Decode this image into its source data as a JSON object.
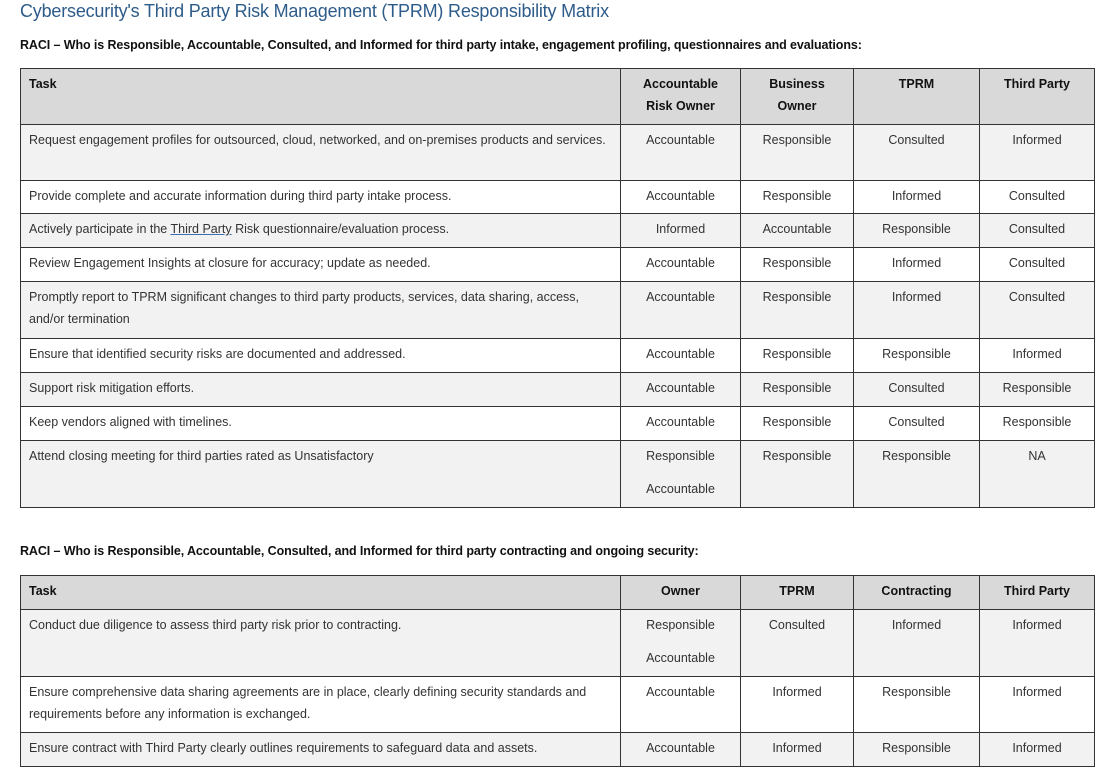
{
  "title": "Cybersecurity's Third Party Risk Management (TPRM) Responsibility Matrix",
  "tables": [
    {
      "caption": "RACI – Who is Responsible, Accountable, Consulted, and Informed for third party intake, engagement profiling, questionnaires and evaluations:",
      "headers": [
        "Task",
        "Accountable Risk Owner",
        "Business Owner",
        "TPRM",
        "Third Party"
      ],
      "rows": [
        {
          "task": "Request engagement profiles for outsourced, cloud, networked, and on-premises products and services.",
          "cells": [
            [
              "Accountable"
            ],
            [
              "Responsible"
            ],
            [
              "Consulted"
            ],
            [
              "Informed"
            ]
          ]
        },
        {
          "task": "Provide complete and accurate information during third party intake process.",
          "cells": [
            [
              "Accountable"
            ],
            [
              "Responsible"
            ],
            [
              "Informed"
            ],
            [
              "Consulted"
            ]
          ]
        },
        {
          "task_parts": [
            "Actively participate in the ",
            "Third Party",
            " Risk questionnaire/evaluation process."
          ],
          "task": "Actively participate in the Third Party Risk questionnaire/evaluation process.",
          "cells": [
            [
              "Informed"
            ],
            [
              "Accountable"
            ],
            [
              "Responsible"
            ],
            [
              "Consulted"
            ]
          ]
        },
        {
          "task": "Review Engagement Insights at closure for accuracy; update as needed.",
          "cells": [
            [
              "Accountable"
            ],
            [
              "Responsible"
            ],
            [
              "Informed"
            ],
            [
              "Consulted"
            ]
          ]
        },
        {
          "task": "Promptly report to TPRM significant changes to third party products, services, data sharing, access, and/or termination",
          "cells": [
            [
              "Accountable"
            ],
            [
              "Responsible"
            ],
            [
              "Informed"
            ],
            [
              "Consulted"
            ]
          ]
        },
        {
          "task": "Ensure that identified security risks are documented and addressed.",
          "cells": [
            [
              "Accountable"
            ],
            [
              "Responsible"
            ],
            [
              "Responsible"
            ],
            [
              "Informed"
            ]
          ]
        },
        {
          "task": "Support risk mitigation efforts.",
          "cells": [
            [
              "Accountable"
            ],
            [
              "Responsible"
            ],
            [
              "Consulted"
            ],
            [
              "Responsible"
            ]
          ]
        },
        {
          "task": "Keep vendors aligned with timelines.",
          "cells": [
            [
              "Accountable"
            ],
            [
              "Responsible"
            ],
            [
              "Consulted"
            ],
            [
              "Responsible"
            ]
          ]
        },
        {
          "task": "Attend closing meeting for third parties rated as Unsatisfactory",
          "cells": [
            [
              "Responsible",
              "Accountable"
            ],
            [
              "Responsible"
            ],
            [
              "Responsible"
            ],
            [
              "NA"
            ]
          ]
        }
      ]
    },
    {
      "caption": "RACI – Who is Responsible, Accountable, Consulted, and Informed for third party contracting and ongoing security:",
      "headers": [
        "Task",
        "Owner",
        "TPRM",
        "Contracting",
        "Third Party"
      ],
      "rows": [
        {
          "task": "Conduct due diligence to assess third party risk prior to contracting.",
          "cells": [
            [
              "Responsible",
              "Accountable"
            ],
            [
              "Consulted"
            ],
            [
              "Informed"
            ],
            [
              "Informed"
            ]
          ]
        },
        {
          "task": "Ensure comprehensive data sharing agreements are in place, clearly defining security standards and requirements before any information is exchanged.",
          "cells": [
            [
              "Accountable"
            ],
            [
              "Informed"
            ],
            [
              "Responsible"
            ],
            [
              "Informed"
            ]
          ]
        },
        {
          "task": "Ensure contract with Third Party clearly outlines requirements to safeguard data and assets.",
          "cells": [
            [
              "Accountable"
            ],
            [
              "Informed"
            ],
            [
              "Responsible"
            ],
            [
              "Informed"
            ]
          ]
        }
      ]
    }
  ]
}
